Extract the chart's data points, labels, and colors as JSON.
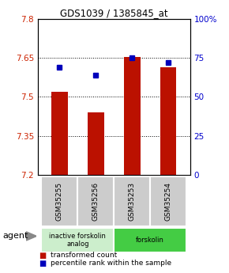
{
  "title": "GDS1039 / 1385845_at",
  "samples": [
    "GSM35255",
    "GSM35256",
    "GSM35253",
    "GSM35254"
  ],
  "bar_values": [
    7.52,
    7.44,
    7.655,
    7.615
  ],
  "percentile_values": [
    69,
    64,
    75,
    72
  ],
  "y_min": 7.2,
  "y_max": 7.8,
  "y_ticks": [
    7.2,
    7.35,
    7.5,
    7.65,
    7.8
  ],
  "y_right_ticks": [
    0,
    25,
    50,
    75,
    100
  ],
  "y_right_labels": [
    "0",
    "25",
    "50",
    "75",
    "100%"
  ],
  "bar_color": "#bb1100",
  "marker_color": "#0000bb",
  "groups": [
    {
      "label": "inactive forskolin\nanalog",
      "samples": [
        0,
        1
      ],
      "color": "#cceecc"
    },
    {
      "label": "forskolin",
      "samples": [
        2,
        3
      ],
      "color": "#44cc44"
    }
  ],
  "legend_items": [
    {
      "label": "transformed count",
      "color": "#bb1100"
    },
    {
      "label": "percentile rank within the sample",
      "color": "#0000bb"
    }
  ],
  "agent_label": "agent",
  "tick_color_left": "#cc2200",
  "tick_color_right": "#0000cc",
  "sample_box_color": "#cccccc"
}
